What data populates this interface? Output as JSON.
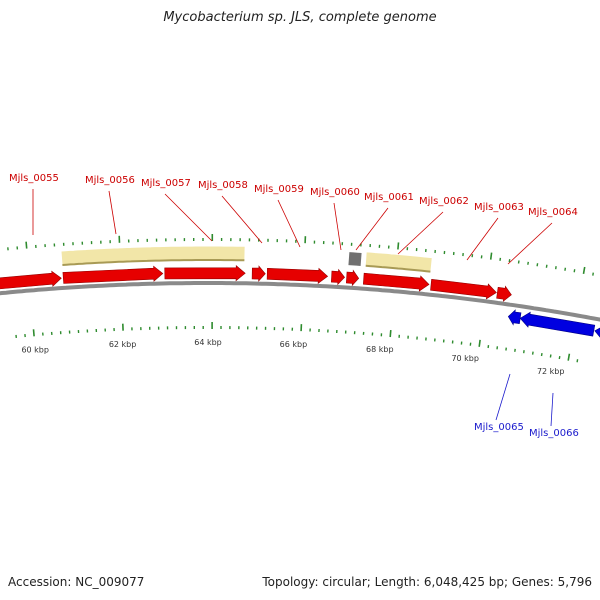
{
  "title": "Mycobacterium sp. JLS, complete genome",
  "colors": {
    "forward_gene": "#e60000",
    "reverse_gene": "#0000e0",
    "cds_region": "#f2e6a8",
    "tick": "#2e8b2e",
    "backbone": "#8a8a8a",
    "top_label": "#cc0000",
    "bottom_label": "#1a1acc"
  },
  "genes_top": [
    {
      "name": "Mjls_0055"
    },
    {
      "name": "Mjls_0056"
    },
    {
      "name": "Mjls_0057"
    },
    {
      "name": "Mjls_0058"
    },
    {
      "name": "Mjls_0059"
    },
    {
      "name": "Mjls_0060"
    },
    {
      "name": "Mjls_0061"
    },
    {
      "name": "Mjls_0062"
    },
    {
      "name": "Mjls_0063"
    },
    {
      "name": "Mjls_0064"
    }
  ],
  "genes_bottom": [
    {
      "name": "Mjls_0065"
    },
    {
      "name": "Mjls_0066"
    }
  ],
  "scale_labels": [
    "60 kbp",
    "62 kbp",
    "64 kbp",
    "66 kbp",
    "68 kbp",
    "70 kbp",
    "72 kbp"
  ],
  "footer": {
    "accession": "Accession: NC_009077",
    "summary": "Topology: circular; Length: 6,048,425 bp; Genes: 5,796"
  }
}
